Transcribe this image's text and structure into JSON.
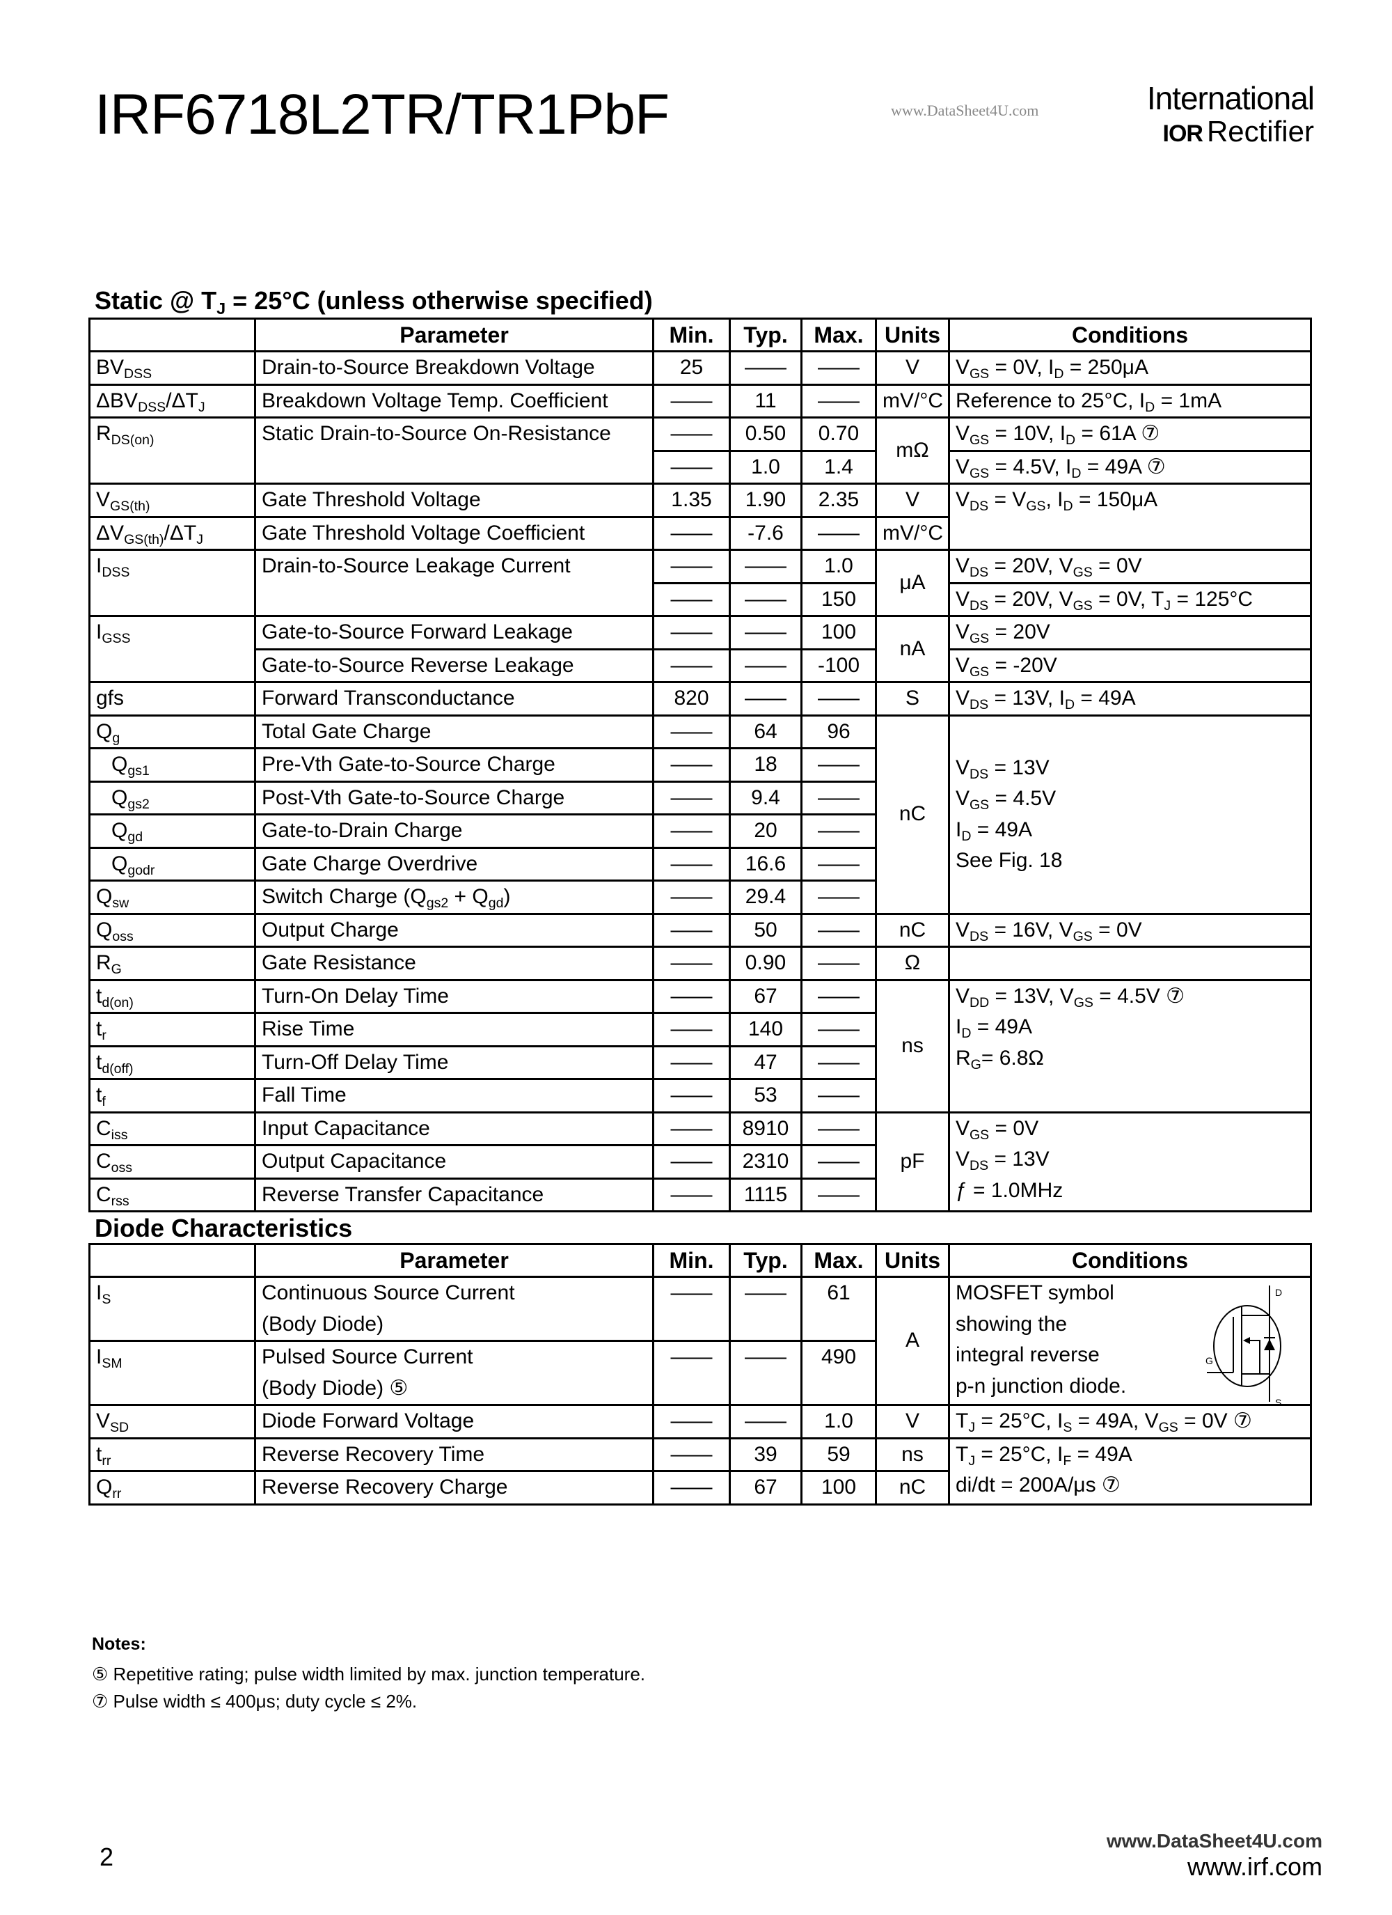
{
  "header": {
    "title": "IRF6718L2TR/TR1PbF",
    "logo_line1": "International",
    "logo_mark": "IOR",
    "logo_line2": "Rectifier",
    "watermark": "www.DataSheet4U.com"
  },
  "static": {
    "title": [
      [
        "Static @ T"
      ],
      [
        [
          "J"
        ]
      ],
      [
        " = 25°C (unless otherwise specified)"
      ]
    ],
    "headers": [
      "",
      "Parameter",
      "Min.",
      "Typ.",
      "Max.",
      "Units",
      "Conditions"
    ],
    "rows": [
      {
        "sym": [
          "BV",
          [
            "DSS"
          ]
        ],
        "param": "Drain-to-Source Breakdown Voltage",
        "min": "25",
        "typ": "——",
        "max": "——",
        "units": "V",
        "cond": [
          [
            "V",
            [
              "GS"
            ],
            " = 0V, I",
            [
              "D"
            ],
            " = 250μA"
          ]
        ]
      },
      {
        "sym": [
          "ΔBV",
          [
            "DSS"
          ],
          "/ΔT",
          [
            "J"
          ]
        ],
        "param": "Breakdown Voltage Temp. Coefficient",
        "min": "——",
        "typ": "11",
        "max": "——",
        "units": "mV/°C",
        "cond": [
          [
            "Reference to 25°C, I",
            [
              "D"
            ],
            " = 1mA"
          ]
        ]
      },
      {
        "sym": [
          "R",
          [
            "DS(on)"
          ]
        ],
        "symSpan": 2,
        "param": "Static Drain-to-Source On-Resistance",
        "paramSpan": 2,
        "min": "——",
        "typ": "0.50",
        "max": "0.70",
        "units": "mΩ",
        "unitsSpan": 2,
        "cond": [
          [
            "V",
            [
              "GS"
            ],
            " = 10V, I",
            [
              "D"
            ],
            " = 61A ⑦"
          ]
        ]
      },
      {
        "min": "——",
        "typ": "1.0",
        "max": "1.4",
        "cond": [
          [
            "V",
            [
              "GS"
            ],
            " = 4.5V, I",
            [
              "D"
            ],
            " = 49A ⑦"
          ]
        ]
      },
      {
        "sym": [
          "V",
          [
            "GS(th)"
          ]
        ],
        "param": "Gate Threshold Voltage",
        "min": "1.35",
        "typ": "1.90",
        "max": "2.35",
        "units": "V",
        "cond": [
          [
            "V",
            [
              "DS"
            ],
            " = V",
            [
              "GS"
            ],
            ", I",
            [
              "D"
            ],
            " = 150μA"
          ]
        ],
        "condSpan": 2,
        "condAlign": "top"
      },
      {
        "sym": [
          "ΔV",
          [
            "GS(th)"
          ],
          "/ΔT",
          [
            "J"
          ]
        ],
        "param": "Gate Threshold Voltage Coefficient",
        "min": "——",
        "typ": "-7.6",
        "max": "——",
        "units": "mV/°C"
      },
      {
        "sym": [
          "I",
          [
            "DSS"
          ]
        ],
        "symSpan": 2,
        "param": "Drain-to-Source Leakage Current",
        "paramSpan": 2,
        "min": "——",
        "typ": "——",
        "max": "1.0",
        "units": "μA",
        "unitsSpan": 2,
        "cond": [
          [
            "V",
            [
              "DS"
            ],
            " = 20V, V",
            [
              "GS"
            ],
            " = 0V"
          ]
        ]
      },
      {
        "min": "——",
        "typ": "——",
        "max": "150",
        "cond": [
          [
            "V",
            [
              "DS"
            ],
            " = 20V, V",
            [
              "GS"
            ],
            " = 0V, T",
            [
              "J"
            ],
            " = 125°C"
          ]
        ]
      },
      {
        "sym": [
          "I",
          [
            "GSS"
          ]
        ],
        "symSpan": 2,
        "param": "Gate-to-Source Forward Leakage",
        "min": "——",
        "typ": "——",
        "max": "100",
        "units": "nA",
        "unitsSpan": 2,
        "cond": [
          [
            "V",
            [
              "GS"
            ],
            " = 20V"
          ]
        ]
      },
      {
        "param": "Gate-to-Source Reverse Leakage",
        "min": "——",
        "typ": "——",
        "max": "-100",
        "cond": [
          [
            "V",
            [
              "GS"
            ],
            " = -20V"
          ]
        ]
      },
      {
        "sym": [
          "gfs"
        ],
        "param": "Forward Transconductance",
        "min": "820",
        "typ": "——",
        "max": "——",
        "units": "S",
        "cond": [
          [
            "V",
            [
              "DS"
            ],
            " = 13V, I",
            [
              "D"
            ],
            " = 49A"
          ]
        ]
      },
      {
        "sym": [
          "Q",
          [
            "g"
          ]
        ],
        "param": "Total Gate Charge",
        "min": "——",
        "typ": "64",
        "max": "96",
        "units": "nC",
        "unitsSpan": 6,
        "cond": [
          [
            "V",
            [
              "DS"
            ],
            " = 13V"
          ],
          [
            "V",
            [
              "GS"
            ],
            " = 4.5V"
          ],
          [
            "I",
            [
              "D"
            ],
            " = 49A"
          ],
          [
            "See Fig. 18"
          ]
        ],
        "condSpan": 6,
        "condAlign": "mid"
      },
      {
        "sym": [
          "Q",
          [
            "gs1"
          ]
        ],
        "indent": true,
        "param": "Pre-Vth Gate-to-Source Charge",
        "min": "——",
        "typ": "18",
        "max": "——"
      },
      {
        "sym": [
          "Q",
          [
            "gs2"
          ]
        ],
        "indent": true,
        "param": "Post-Vth Gate-to-Source Charge",
        "min": "——",
        "typ": "9.4",
        "max": "——"
      },
      {
        "sym": [
          "Q",
          [
            "gd"
          ]
        ],
        "indent": true,
        "param": "Gate-to-Drain Charge",
        "min": "——",
        "typ": "20",
        "max": "——"
      },
      {
        "sym": [
          "Q",
          [
            "godr"
          ]
        ],
        "indent": true,
        "param": "Gate Charge Overdrive",
        "min": "——",
        "typ": "16.6",
        "max": "——"
      },
      {
        "sym": [
          "Q",
          [
            "sw"
          ]
        ],
        "param": [
          "Switch Charge (Q",
          [
            "gs2"
          ],
          " + Q",
          [
            "gd"
          ],
          ")"
        ],
        "min": "——",
        "typ": "29.4",
        "max": "——"
      },
      {
        "sym": [
          "Q",
          [
            "oss"
          ]
        ],
        "param": "Output Charge",
        "min": "——",
        "typ": "50",
        "max": "——",
        "units": "nC",
        "cond": [
          [
            "V",
            [
              "DS"
            ],
            " = 16V, V",
            [
              "GS"
            ],
            " = 0V"
          ]
        ]
      },
      {
        "sym": [
          "R",
          [
            "G"
          ]
        ],
        "param": "Gate Resistance",
        "min": "——",
        "typ": "0.90",
        "max": "——",
        "units": "Ω",
        "cond": [
          [
            ""
          ]
        ]
      },
      {
        "sym": [
          "t",
          [
            "d(on)"
          ]
        ],
        "param": "Turn-On Delay Time",
        "min": "——",
        "typ": "67",
        "max": "——",
        "units": "ns",
        "unitsSpan": 4,
        "cond": [
          [
            "V",
            [
              "DD"
            ],
            " = 13V, V",
            [
              "GS"
            ],
            " = 4.5V    ⑦"
          ],
          [
            "I",
            [
              "D"
            ],
            " = 49A"
          ],
          [
            "R",
            [
              "G"
            ],
            "= 6.8Ω"
          ]
        ],
        "condSpan": 4,
        "condAlign": "top"
      },
      {
        "sym": [
          "t",
          [
            "r"
          ]
        ],
        "param": "Rise Time",
        "min": "——",
        "typ": "140",
        "max": "——"
      },
      {
        "sym": [
          "t",
          [
            "d(off)"
          ]
        ],
        "param": "Turn-Off Delay Time",
        "min": "——",
        "typ": "47",
        "max": "——"
      },
      {
        "sym": [
          "t",
          [
            "f"
          ]
        ],
        "param": "Fall Time",
        "min": "——",
        "typ": "53",
        "max": "——"
      },
      {
        "sym": [
          "C",
          [
            "iss"
          ]
        ],
        "param": "Input Capacitance",
        "min": "——",
        "typ": "8910",
        "max": "——",
        "units": "pF",
        "unitsSpan": 3,
        "cond": [
          [
            "V",
            [
              "GS"
            ],
            " = 0V"
          ],
          [
            "V",
            [
              "DS"
            ],
            " = 13V"
          ],
          [
            "ƒ = 1.0MHz"
          ]
        ],
        "condSpan": 3,
        "condAlign": "top"
      },
      {
        "sym": [
          "C",
          [
            "oss"
          ]
        ],
        "param": "Output Capacitance",
        "min": "——",
        "typ": "2310",
        "max": "——"
      },
      {
        "sym": [
          "C",
          [
            "rss"
          ]
        ],
        "param": "Reverse Transfer Capacitance",
        "min": "——",
        "typ": "1115",
        "max": "——"
      }
    ]
  },
  "diode": {
    "title": [
      [
        "Diode Characteristics"
      ]
    ],
    "headers": [
      "",
      "Parameter",
      "Min.",
      "Typ.",
      "Max.",
      "Units",
      "Conditions"
    ],
    "rows": [
      {
        "sym": [
          "I",
          [
            "S"
          ]
        ],
        "param": [
          "Continuous Source Current",
          "(Body Diode)"
        ],
        "min": "——",
        "typ": "——",
        "max": "61",
        "units": "A",
        "unitsSpan": 2,
        "cond": [
          [
            "MOSFET symbol"
          ],
          [
            "showing  the"
          ],
          [
            "integral reverse"
          ],
          [
            "p-n junction diode."
          ]
        ],
        "condSpan": 2,
        "condAlign": "top",
        "mosfet": true
      },
      {
        "sym": [
          "I",
          [
            "SM"
          ]
        ],
        "param": [
          "Pulsed Source Current",
          "(Body Diode)    ⑤"
        ],
        "min": "——",
        "typ": "——",
        "max": "490"
      },
      {
        "sym": [
          "V",
          [
            "SD"
          ]
        ],
        "param": "Diode Forward Voltage",
        "min": "——",
        "typ": "——",
        "max": "1.0",
        "units": "V",
        "cond": [
          [
            "T",
            [
              "J"
            ],
            " = 25°C, I",
            [
              "S"
            ],
            " = 49A, V",
            [
              "GS"
            ],
            " = 0V ⑦"
          ]
        ]
      },
      {
        "sym": [
          "t",
          [
            "rr"
          ]
        ],
        "param": "Reverse Recovery Time",
        "min": "——",
        "typ": "39",
        "max": "59",
        "units": "ns",
        "cond": [
          [
            "T",
            [
              "J"
            ],
            " = 25°C, I",
            [
              "F"
            ],
            " = 49A"
          ],
          [
            "di/dt = 200A/μs ⑦"
          ]
        ],
        "condSpan": 2,
        "condAlign": "top"
      },
      {
        "sym": [
          "Q",
          [
            "rr"
          ]
        ],
        "param": "Reverse Recovery Charge",
        "min": "——",
        "typ": "67",
        "max": "100",
        "units": "nC"
      }
    ],
    "symbol_labels": {
      "drain": "D",
      "gate": "G",
      "source": "S"
    }
  },
  "notes": {
    "title": "Notes:",
    "items": [
      "⑤ Repetitive rating;  pulse width limited by max. junction temperature.",
      "⑦ Pulse width ≤ 400μs; duty cycle ≤ 2%."
    ]
  },
  "footer": {
    "page": "2",
    "watermark": "www.DataSheet4U.com",
    "url": "www.irf.com"
  }
}
